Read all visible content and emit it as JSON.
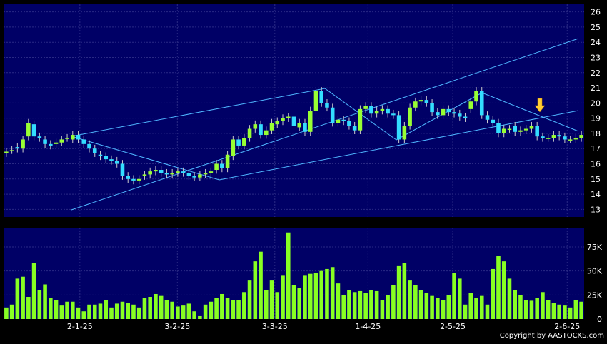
{
  "copyright": "Copyright by AASTOCKS.com",
  "colors": {
    "background": "#000000",
    "panel": "#000066",
    "grid": "#2a2a85",
    "up_candle": "#99ff33",
    "down_candle": "#33ddff",
    "volume": "#88ff22",
    "trendline": "#4fb6ff",
    "arrow": "#ffcc33",
    "text": "#ffffff"
  },
  "chart_data": [
    {
      "type": "candlestick",
      "yaxis_side": "right",
      "ylim": [
        12.5,
        26.5
      ],
      "y_ticks": [
        "13",
        "14",
        "15",
        "16",
        "17",
        "18",
        "19",
        "20",
        "21",
        "22",
        "23",
        "24",
        "25",
        "26"
      ],
      "x_ticks": [
        "2-1-25",
        "3-2-25",
        "3-3-25",
        "1-4-25",
        "2-5-25",
        "2-6-25"
      ],
      "grid": true,
      "closes": [
        16.8,
        16.9,
        17.0,
        17.6,
        18.7,
        17.8,
        17.7,
        17.3,
        17.2,
        17.4,
        17.6,
        17.7,
        17.9,
        17.6,
        17.3,
        17.0,
        16.7,
        16.5,
        16.3,
        16.2,
        16.0,
        15.2,
        15.0,
        14.9,
        15.0,
        15.3,
        15.5,
        15.6,
        15.4,
        15.3,
        15.4,
        15.5,
        15.4,
        15.2,
        15.1,
        15.3,
        15.4,
        15.5,
        16.0,
        15.7,
        16.6,
        17.6,
        17.2,
        17.7,
        18.3,
        18.6,
        17.9,
        18.2,
        18.7,
        18.8,
        19.0,
        19.1,
        18.5,
        18.7,
        18.1,
        19.5,
        20.8,
        20.0,
        19.7,
        18.7,
        18.9,
        18.8,
        18.5,
        18.2,
        19.6,
        19.8,
        19.3,
        19.5,
        19.6,
        19.3,
        19.2,
        17.6,
        18.5,
        19.7,
        20.1,
        20.2,
        20.0,
        19.4,
        19.2,
        19.6,
        19.4,
        19.3,
        19.1,
        19.0,
        20.1,
        20.8,
        19.2,
        18.9,
        18.7,
        18.0,
        18.3,
        18.3,
        18.1,
        18.2,
        18.3,
        18.5,
        17.8,
        17.7,
        17.7,
        17.9,
        17.8,
        17.6,
        17.6,
        17.7,
        17.9
      ],
      "opens": [
        16.7,
        16.9,
        17.1,
        17.0,
        17.8,
        18.6,
        17.8,
        17.6,
        17.3,
        17.3,
        17.4,
        17.7,
        17.6,
        17.9,
        17.6,
        17.3,
        17.0,
        16.6,
        16.5,
        16.3,
        16.2,
        16.0,
        15.2,
        15.0,
        14.9,
        15.2,
        15.3,
        15.5,
        15.6,
        15.4,
        15.3,
        15.4,
        15.5,
        15.4,
        15.2,
        15.1,
        15.3,
        15.4,
        15.6,
        16.0,
        15.7,
        16.5,
        17.6,
        17.2,
        17.7,
        18.3,
        18.6,
        17.9,
        18.2,
        18.6,
        18.8,
        19.0,
        19.1,
        18.4,
        18.7,
        18.1,
        19.5,
        20.8,
        20.0,
        19.7,
        18.7,
        18.9,
        18.8,
        18.5,
        18.2,
        19.6,
        19.8,
        19.3,
        19.5,
        19.6,
        19.3,
        19.2,
        17.6,
        18.5,
        19.7,
        20.1,
        20.2,
        20.0,
        19.4,
        19.2,
        19.6,
        19.4,
        19.3,
        19.1,
        19.6,
        20.1,
        20.8,
        19.2,
        18.9,
        18.7,
        18.0,
        18.3,
        18.5,
        18.1,
        18.2,
        18.3,
        18.5,
        17.8,
        17.7,
        17.7,
        17.9,
        17.8,
        17.6,
        17.6,
        17.7
      ],
      "volume": {
        "ylim": [
          0,
          95000
        ],
        "y_ticks": [
          "0",
          "25K",
          "50K",
          "75K"
        ],
        "values": [
          12000,
          15000,
          42000,
          44000,
          23000,
          58000,
          30000,
          36000,
          22000,
          20000,
          14000,
          18000,
          18000,
          12000,
          8000,
          15000,
          15000,
          16000,
          20000,
          12000,
          16000,
          18000,
          17000,
          15000,
          12000,
          22000,
          23000,
          26000,
          24000,
          20000,
          18000,
          13000,
          14000,
          16000,
          8000,
          3000,
          15000,
          18000,
          22000,
          26000,
          22000,
          20000,
          20000,
          28000,
          40000,
          60000,
          70000,
          30000,
          40000,
          28000,
          45000,
          90000,
          35000,
          32000,
          45000,
          47000,
          48000,
          50000,
          52000,
          54000,
          37000,
          25000,
          30000,
          28000,
          29000,
          27000,
          30000,
          29000,
          20000,
          25000,
          35000,
          55000,
          58000,
          40000,
          35000,
          30000,
          27000,
          24000,
          22000,
          20000,
          25000,
          48000,
          42000,
          15000,
          27000,
          22000,
          24000,
          15000,
          52000,
          66000,
          60000,
          42000,
          30000,
          25000,
          20000,
          19000,
          22000,
          28000,
          20000,
          17000,
          15000,
          14000,
          12000,
          20000,
          18000
        ],
        "grid": true
      }
    }
  ]
}
